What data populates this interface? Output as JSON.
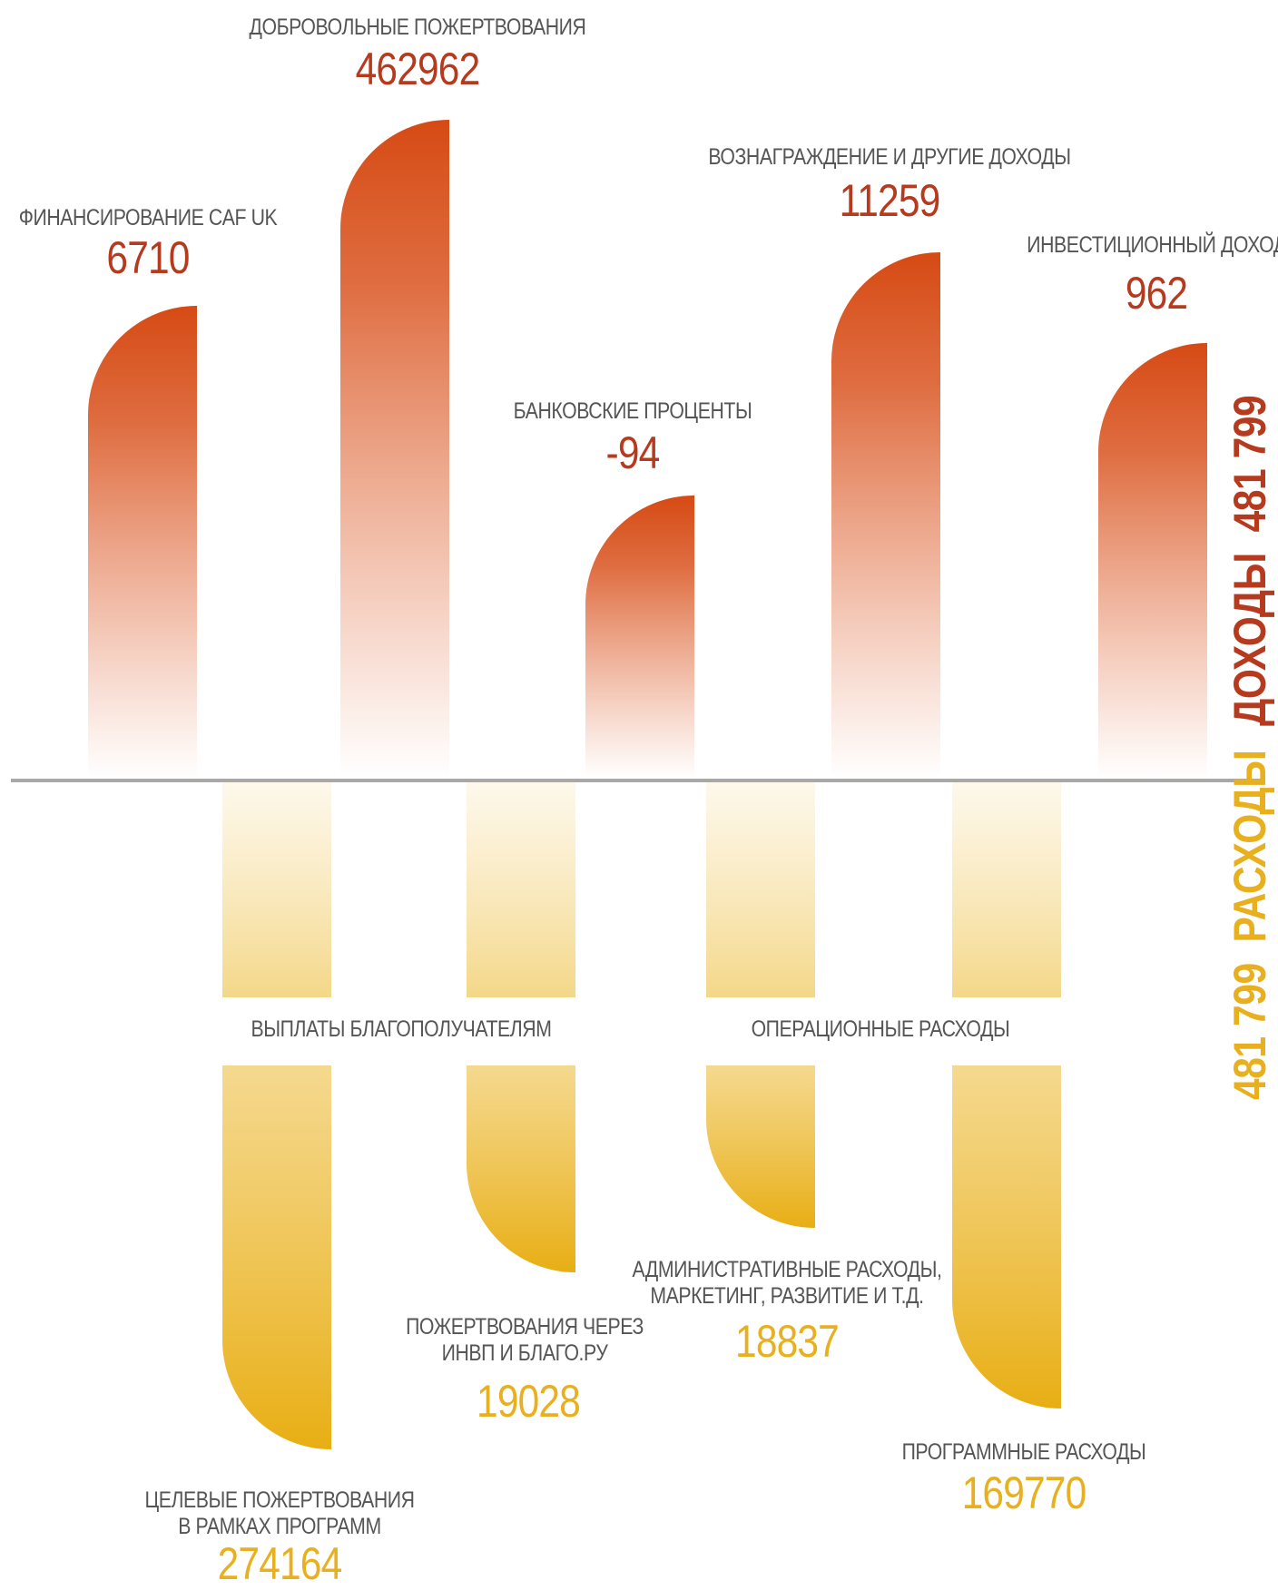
{
  "chart_data": {
    "type": "bar",
    "title": "",
    "income": {
      "label": "ДОХОДЫ",
      "total": "481 799",
      "color": "#d64a14",
      "items": [
        {
          "category": "ФИНАНСИРОВАНИЕ CAF UK",
          "value": 6710
        },
        {
          "category": "ДОБРОВОЛЬНЫЕ ПОЖЕРТВОВАНИЯ",
          "value": 462962
        },
        {
          "category": "БАНКОВСКИЕ ПРОЦЕНТЫ",
          "value": -94
        },
        {
          "category": "ВОЗНАГРАЖДЕНИЕ И ДРУГИЕ ДОХОДЫ",
          "value": 11259
        },
        {
          "category": "ИНВЕСТИЦИОННЫЙ ДОХОД",
          "value": 962
        }
      ]
    },
    "expenses": {
      "label": "РАСХОДЫ",
      "total": "481 799",
      "color": "#ecb21c",
      "groups": [
        {
          "category": "ВЫПЛАТЫ БЛАГОПОЛУЧАТЕЛЯМ"
        },
        {
          "category": "ОПЕРАЦИОННЫЕ РАСХОДЫ"
        }
      ],
      "items": [
        {
          "category_line1": "ЦЕЛЕВЫЕ ПОЖЕРТВОВАНИЯ",
          "category_line2": "В РАМКАХ ПРОГРАММ",
          "value": 274164
        },
        {
          "category_line1": "ПОЖЕРТВОВАНИЯ ЧЕРЕЗ",
          "category_line2": "ИНВП И БЛАГО.РУ",
          "value": 19028
        },
        {
          "category_line1": "АДМИНИСТРАТИВНЫЕ РАСХОДЫ,",
          "category_line2": "МАРКЕТИНГ, РАЗВИТИЕ И Т.Д.",
          "value": 18837
        },
        {
          "category_line1": "ПРОГРАММНЫЕ РАСХОДЫ",
          "category_line2": "",
          "value": 169770
        }
      ]
    }
  }
}
